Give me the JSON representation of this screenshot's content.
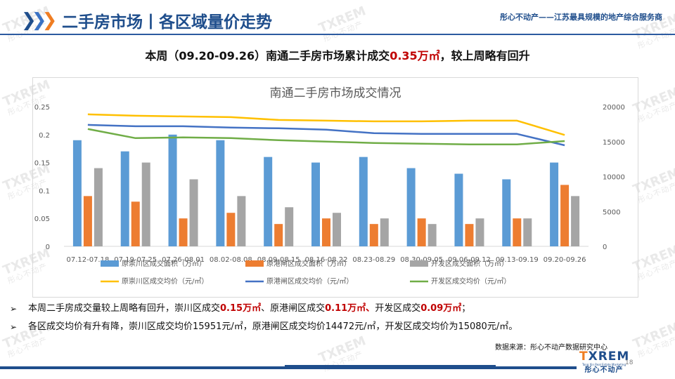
{
  "header": {
    "title": "二手房市场丨各区域量价走势",
    "slogan": "彤心不动产——江苏最具规模的地产综合服务商"
  },
  "headline": {
    "prefix": "本周（09.20-09.26）南通二手房市场累计成交",
    "highlight": "0.35万㎡",
    "suffix": "，较上周略有回升"
  },
  "colors": {
    "series_chongchuan": "#5b9bd5",
    "series_ganggang": "#ed7d31",
    "series_kaifa": "#a5a5a5",
    "price_chongchuan": "#ffc000",
    "price_ganggang": "#4472c4",
    "price_kaifa": "#70ad47",
    "accent": "#1f4e8c",
    "highlight_red": "#c00000"
  },
  "chart_data": {
    "type": "bar",
    "title": "南通二手房市场成交情况",
    "categories": [
      "07.12-07.18",
      "07.19-07.25",
      "07.26-08.01",
      "08.02-08.08",
      "08.09-08.15",
      "08.16-08.22",
      "08.23-08.29",
      "08.30-09.05",
      "09.06-09.12",
      "09.13-09.19",
      "09.20-09.26"
    ],
    "series": [
      {
        "name": "原崇川区成交面积（万㎡）",
        "kind": "bar",
        "axis": "left",
        "values": [
          0.19,
          0.17,
          0.2,
          0.19,
          0.16,
          0.15,
          0.16,
          0.14,
          0.13,
          0.12,
          0.15
        ]
      },
      {
        "name": "原港闸区成交面积（万㎡）",
        "kind": "bar",
        "axis": "left",
        "values": [
          0.09,
          0.08,
          0.05,
          0.06,
          0.04,
          0.05,
          0.04,
          0.05,
          0.04,
          0.05,
          0.11
        ]
      },
      {
        "name": "开发区成交面积（万㎡）",
        "kind": "bar",
        "axis": "left",
        "values": [
          0.14,
          0.15,
          0.12,
          0.09,
          0.07,
          0.06,
          0.05,
          0.04,
          0.05,
          0.05,
          0.09
        ]
      },
      {
        "name": "原崇川区成交均价（元/㎡）",
        "kind": "line",
        "axis": "right",
        "values": [
          18900,
          18700,
          18600,
          18500,
          18100,
          18000,
          17900,
          17900,
          18000,
          18000,
          15951
        ]
      },
      {
        "name": "原港闸区成交均价（元/㎡）",
        "kind": "line",
        "axis": "right",
        "values": [
          17400,
          17200,
          17200,
          17000,
          16900,
          16700,
          16200,
          16100,
          16100,
          16100,
          14472
        ]
      },
      {
        "name": "开发区成交均价（元/㎡）",
        "kind": "line",
        "axis": "right",
        "values": [
          16800,
          15500,
          15600,
          15500,
          15200,
          15000,
          14800,
          14700,
          14600,
          14600,
          15080
        ]
      }
    ],
    "y_left": {
      "min": 0,
      "max": 0.25,
      "ticks": [
        "0",
        "0.05",
        "0.1",
        "0.15",
        "0.2",
        "0.25"
      ]
    },
    "y_right": {
      "min": 0,
      "max": 20000,
      "ticks": [
        "0",
        "5000",
        "10000",
        "15000",
        "20000"
      ]
    },
    "grid": false,
    "legend_position": "bottom"
  },
  "bullets": [
    {
      "parts": [
        {
          "t": "本周二手房成交量较上周略有回升，崇川区成交",
          "red": false
        },
        {
          "t": "0.15万㎡",
          "red": true
        },
        {
          "t": "、原港闸区成交",
          "red": false
        },
        {
          "t": "0.11万㎡、",
          "red": true
        },
        {
          "t": "开发区成交",
          "red": false
        },
        {
          "t": "0.09万㎡",
          "red": true
        },
        {
          "t": "；",
          "red": false
        }
      ]
    },
    {
      "parts": [
        {
          "t": "各区成交均价有升有降，崇川区成交均价15951元/㎡，原港闸区成交均价14472元/㎡，开发区成交均价为15080元/㎡。",
          "red": false
        }
      ]
    }
  ],
  "source": "数据来源：彤心不动产数据研究中心",
  "footer": {
    "logo_text": "TXREM",
    "logo_sub": "Tong Xin Real Estate Marketing",
    "logo_cn": "彤心不动产",
    "page_number": "18"
  },
  "watermark": {
    "mark": "TXREM",
    "sub": "彤心不动产"
  }
}
